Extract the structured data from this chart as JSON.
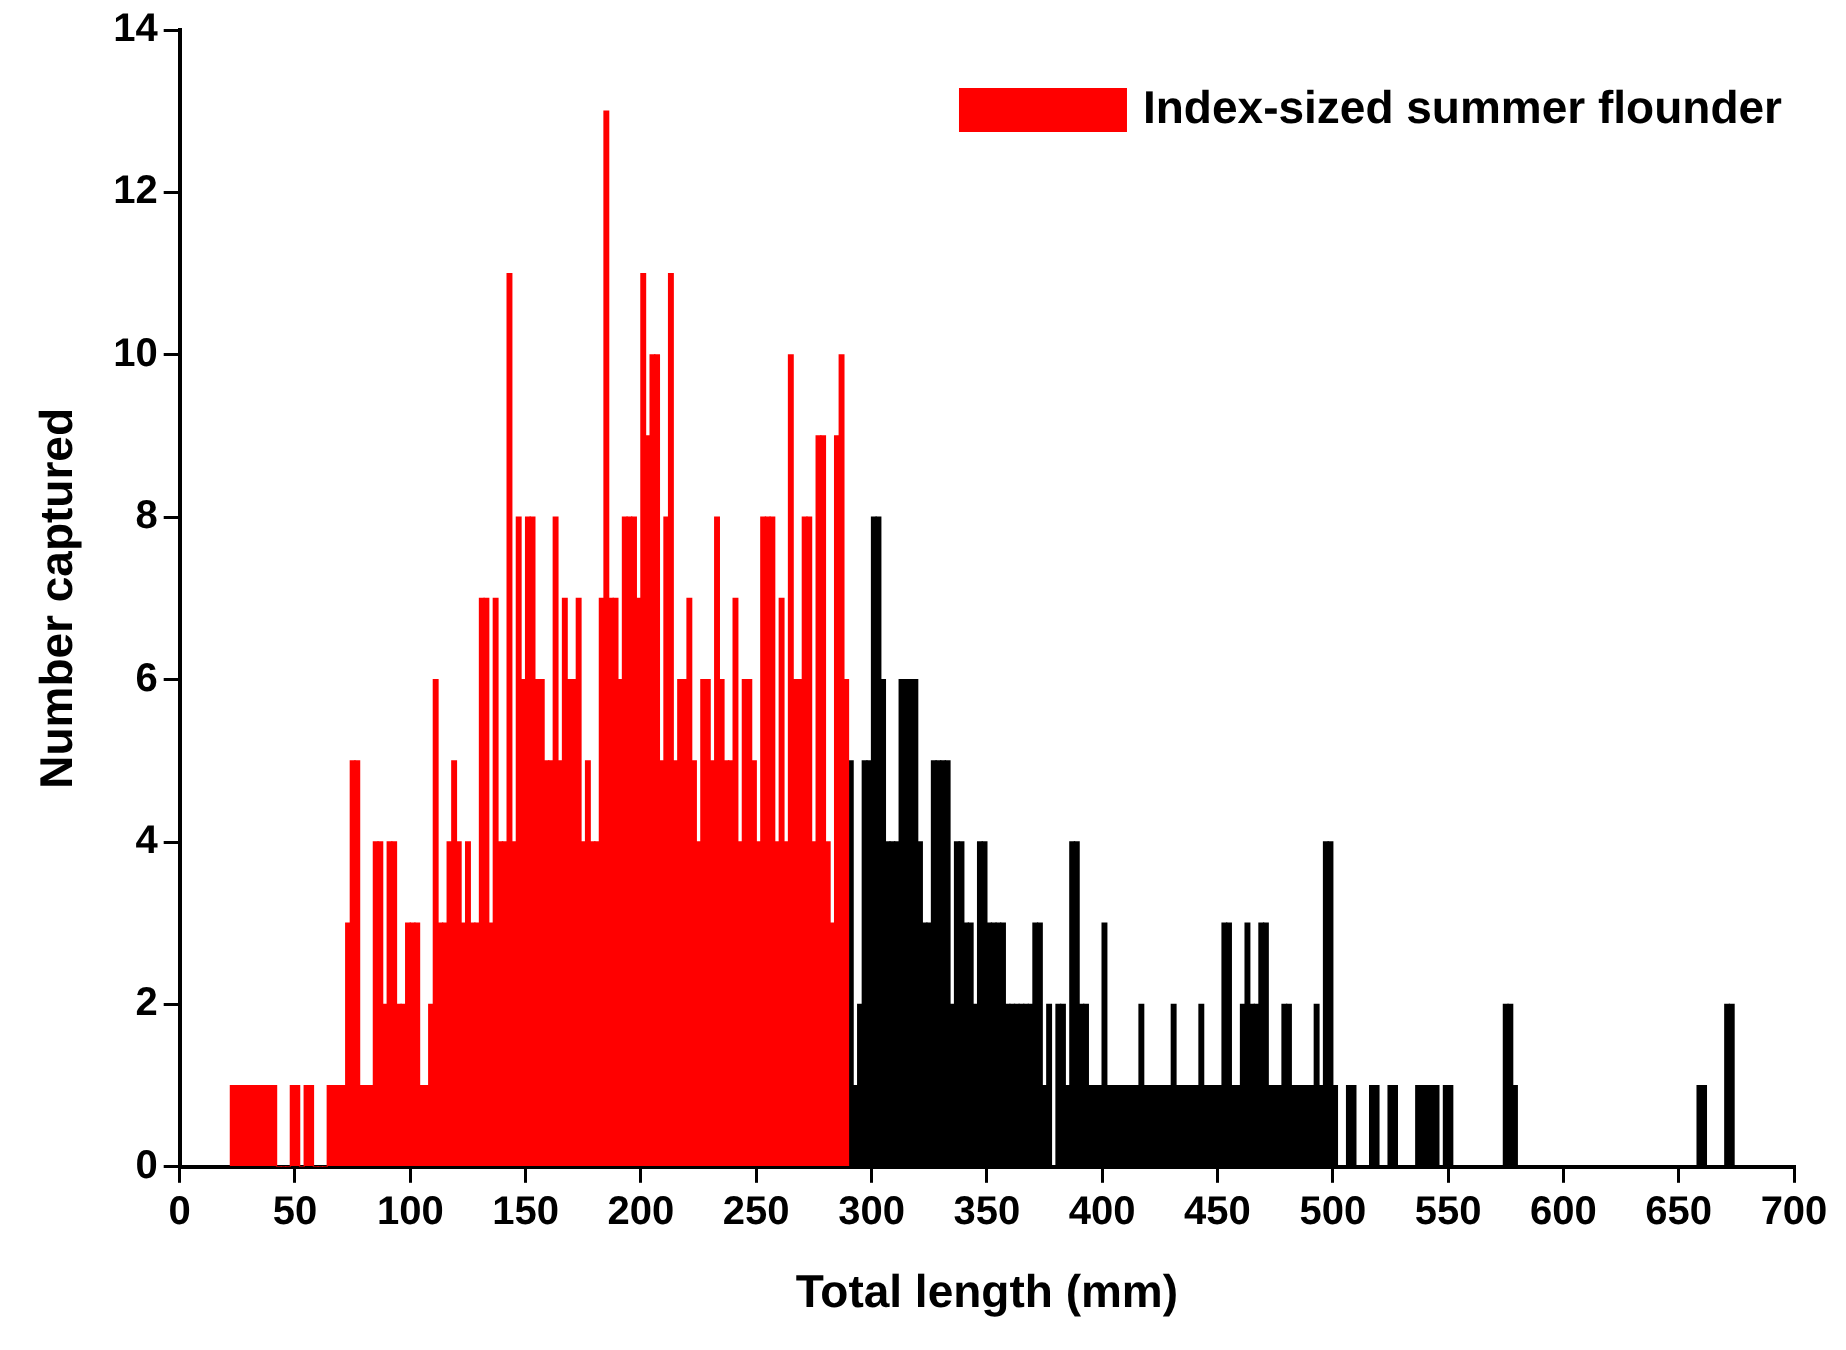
{
  "chart_data": {
    "type": "histogram",
    "xlabel": "Total length (mm)",
    "ylabel": "Number captured",
    "bins": [
      22,
      24,
      26,
      28,
      30,
      32,
      34,
      36,
      38,
      40,
      42,
      44,
      46,
      48,
      50,
      52,
      54,
      56,
      58,
      60,
      62,
      64,
      66,
      68,
      70,
      72,
      74,
      76,
      78,
      80,
      82,
      84,
      86,
      88,
      90,
      92,
      94,
      96,
      98,
      100,
      102,
      104,
      106,
      108,
      110,
      112,
      114,
      116,
      118,
      120,
      122,
      124,
      126,
      128,
      130,
      132,
      134,
      136,
      138,
      140,
      142,
      144,
      146,
      148,
      150,
      152,
      154,
      156,
      158,
      160,
      162,
      164,
      166,
      168,
      170,
      172,
      174,
      176,
      178,
      180,
      182,
      184,
      186,
      188,
      190,
      192,
      194,
      196,
      198,
      200,
      202,
      204,
      206,
      208,
      210,
      212,
      214,
      216,
      218,
      220,
      222,
      224,
      226,
      228,
      230,
      232,
      234,
      236,
      238,
      240,
      242,
      244,
      246,
      248,
      250,
      252,
      254,
      256,
      258,
      260,
      262,
      264,
      266,
      268,
      270,
      272,
      274,
      276,
      278,
      280,
      282,
      284,
      286,
      288,
      290,
      292,
      294,
      296,
      298,
      300,
      302,
      304,
      306,
      308,
      310,
      312,
      314,
      316,
      318,
      320,
      322,
      324,
      326,
      328,
      330,
      332,
      334,
      336,
      338,
      340,
      342,
      344,
      346,
      348,
      350,
      352,
      354,
      356,
      358,
      360,
      362,
      364,
      366,
      368,
      370,
      372,
      374,
      376,
      378,
      380,
      382,
      384,
      386,
      388,
      390,
      392,
      394,
      396,
      398,
      400,
      402,
      404,
      406,
      408,
      410,
      412,
      414,
      416,
      418,
      420,
      422,
      424,
      426,
      428,
      430,
      432,
      434,
      436,
      438,
      440,
      442,
      444,
      446,
      448,
      450,
      452,
      454,
      456,
      458,
      460,
      462,
      464,
      466,
      468,
      470,
      472,
      474,
      476,
      478,
      480,
      482,
      484,
      486,
      488,
      490,
      492,
      494,
      496,
      498,
      500,
      502,
      504,
      506,
      508,
      510,
      512,
      514,
      516,
      518,
      520,
      522,
      524,
      526,
      528,
      530,
      532,
      534,
      536,
      538,
      540,
      542,
      544,
      546,
      548,
      550,
      552,
      554,
      556,
      558,
      560,
      562,
      564,
      566,
      568,
      570,
      572,
      574,
      576,
      578,
      580,
      582,
      584,
      586,
      588,
      590,
      592,
      594,
      596,
      598,
      600,
      602,
      604,
      606,
      608,
      610,
      612,
      614,
      616,
      618,
      620,
      622,
      624,
      626,
      628,
      630,
      632,
      634,
      636,
      638,
      640,
      642,
      644,
      646,
      648,
      650,
      652,
      654,
      656,
      658,
      660,
      662,
      664,
      666,
      668,
      670,
      672,
      674
    ],
    "series": [
      {
        "name": "Index-sized summer flounder",
        "color": "#ff0000",
        "values": [
          1,
          1,
          1,
          1,
          1,
          1,
          1,
          1,
          1,
          1,
          0,
          0,
          0,
          1,
          1,
          0,
          1,
          1,
          0,
          0,
          0,
          1,
          1,
          1,
          1,
          3,
          5,
          5,
          1,
          1,
          1,
          4,
          4,
          2,
          4,
          4,
          2,
          2,
          3,
          3,
          3,
          1,
          1,
          2,
          6,
          3,
          3,
          4,
          5,
          4,
          3,
          4,
          3,
          3,
          7,
          7,
          3,
          7,
          4,
          4,
          11,
          4,
          8,
          6,
          8,
          8,
          6,
          6,
          5,
          5,
          8,
          5,
          7,
          6,
          6,
          7,
          4,
          5,
          4,
          4,
          7,
          13,
          7,
          7,
          6,
          8,
          8,
          8,
          7,
          11,
          9,
          10,
          10,
          5,
          8,
          11,
          5,
          6,
          6,
          7,
          5,
          4,
          6,
          6,
          5,
          8,
          6,
          5,
          5,
          7,
          4,
          6,
          6,
          5,
          4,
          8,
          8,
          8,
          4,
          7,
          4,
          10,
          6,
          6,
          8,
          8,
          4,
          9,
          9,
          4,
          3,
          9,
          10,
          6,
          null,
          null,
          null,
          null,
          null,
          null,
          null,
          null,
          null,
          null,
          null,
          null,
          null,
          null,
          null,
          null,
          null,
          null,
          null,
          null,
          null,
          null,
          null,
          null,
          null,
          null,
          null,
          null,
          null,
          null,
          null,
          null,
          null,
          null,
          null,
          null,
          null,
          null,
          null,
          null,
          null,
          null,
          null,
          null,
          null,
          null,
          null,
          null,
          null,
          null,
          null,
          null,
          null,
          null,
          null,
          null,
          null,
          null,
          null,
          null,
          null,
          null,
          null,
          null,
          null,
          null,
          null,
          null,
          null,
          null,
          null,
          null,
          null,
          null,
          null,
          null,
          null,
          null,
          null,
          null,
          null,
          null,
          null,
          null,
          null,
          null,
          null,
          null,
          null,
          null,
          null,
          null,
          null,
          null,
          null,
          null,
          null,
          null,
          null,
          null,
          null,
          null,
          null,
          null,
          null,
          null,
          null,
          null,
          null,
          null,
          null,
          null,
          null,
          null,
          null,
          null,
          null,
          null,
          null,
          null,
          null,
          null,
          null,
          null,
          null,
          null,
          null,
          null,
          null,
          null,
          null,
          null,
          null,
          null,
          null,
          null,
          null,
          null,
          null,
          null,
          null,
          null,
          null,
          null,
          null,
          null,
          null,
          null,
          null,
          null,
          null,
          null,
          null,
          null,
          null,
          null,
          null,
          null,
          null,
          null,
          null,
          null,
          null,
          null,
          null,
          null,
          null,
          null,
          null,
          null,
          null,
          null,
          null,
          null,
          null,
          null,
          null,
          null,
          null,
          null,
          null,
          null,
          null,
          null,
          null,
          null,
          null,
          null,
          null,
          null,
          null,
          null
        ]
      },
      {
        "color": "#000000",
        "values": [
          null,
          null,
          null,
          null,
          null,
          null,
          null,
          null,
          null,
          null,
          null,
          null,
          null,
          null,
          null,
          null,
          null,
          null,
          null,
          null,
          null,
          null,
          null,
          null,
          null,
          null,
          null,
          null,
          null,
          null,
          null,
          null,
          null,
          null,
          null,
          null,
          null,
          null,
          null,
          null,
          null,
          null,
          null,
          null,
          null,
          null,
          null,
          null,
          null,
          null,
          null,
          null,
          null,
          null,
          null,
          null,
          null,
          null,
          null,
          null,
          null,
          null,
          null,
          null,
          null,
          null,
          null,
          null,
          null,
          null,
          null,
          null,
          null,
          null,
          null,
          null,
          null,
          null,
          null,
          null,
          null,
          null,
          null,
          null,
          null,
          null,
          null,
          null,
          null,
          null,
          null,
          null,
          null,
          null,
          null,
          null,
          null,
          null,
          null,
          null,
          null,
          null,
          null,
          null,
          null,
          null,
          null,
          null,
          null,
          null,
          null,
          null,
          null,
          null,
          null,
          null,
          null,
          null,
          null,
          null,
          null,
          null,
          null,
          null,
          null,
          null,
          null,
          null,
          null,
          null,
          null,
          null,
          null,
          null,
          5,
          1,
          2,
          5,
          5,
          8,
          8,
          6,
          4,
          4,
          4,
          6,
          6,
          6,
          6,
          4,
          3,
          3,
          5,
          5,
          5,
          5,
          2,
          4,
          4,
          3,
          3,
          2,
          4,
          4,
          3,
          3,
          3,
          3,
          2,
          2,
          2,
          2,
          2,
          2,
          3,
          3,
          1,
          2,
          0,
          2,
          2,
          1,
          4,
          4,
          2,
          2,
          1,
          1,
          1,
          3,
          1,
          1,
          1,
          1,
          1,
          1,
          1,
          2,
          1,
          1,
          1,
          1,
          1,
          1,
          2,
          1,
          1,
          1,
          1,
          1,
          2,
          1,
          1,
          1,
          1,
          3,
          3,
          1,
          1,
          2,
          3,
          2,
          2,
          3,
          3,
          1,
          1,
          1,
          2,
          2,
          1,
          1,
          1,
          1,
          1,
          2,
          1,
          4,
          4,
          1,
          0,
          0,
          1,
          1,
          0,
          0,
          0,
          1,
          1,
          0,
          0,
          1,
          1,
          0,
          0,
          0,
          0,
          1,
          1,
          1,
          1,
          1,
          0,
          1,
          1,
          0,
          0,
          0,
          0,
          0,
          0,
          0,
          0,
          0,
          0,
          0,
          2,
          2,
          1,
          0,
          0,
          0,
          0,
          0,
          0,
          0,
          0,
          0,
          0,
          0,
          0,
          0,
          0,
          0,
          0,
          0,
          0,
          0,
          0,
          0,
          0,
          0,
          0,
          0,
          0,
          0,
          0,
          0,
          0,
          0,
          0,
          0,
          0,
          0,
          0,
          0,
          0,
          0,
          1,
          1,
          0,
          0,
          0,
          0,
          2,
          2
        ]
      }
    ],
    "xlim": [
      0,
      700
    ],
    "xticks": [
      0,
      50,
      100,
      150,
      200,
      250,
      300,
      350,
      400,
      450,
      500,
      550,
      600,
      650,
      700
    ],
    "ylim": [
      0,
      14
    ],
    "yticks": [
      0,
      2,
      4,
      6,
      8,
      10,
      12,
      14
    ],
    "grid": false,
    "legend": "top right"
  }
}
